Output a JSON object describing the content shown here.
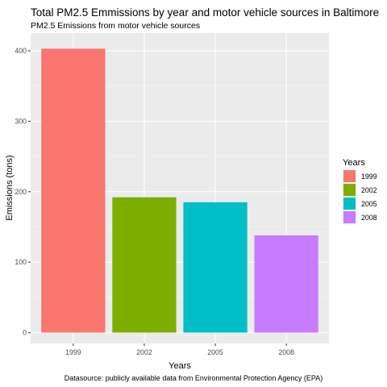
{
  "chart_data": {
    "type": "bar",
    "title": "Total PM2.5 Emmissions by year and motor vehicle sources in Baltimore",
    "subtitle": "PM2.5 Emissions from motor vehicle sources",
    "caption": "Datasource: publicly available data from Environmental Protection Agency (EPA)",
    "xlabel": "Years",
    "ylabel": "Emissions (tons)",
    "categories": [
      "1999",
      "2002",
      "2005",
      "2008"
    ],
    "values": [
      403,
      192,
      185,
      138
    ],
    "colors": [
      "#F8766D",
      "#7CAE00",
      "#00BFC4",
      "#C77CFF"
    ],
    "ylim": [
      0,
      420
    ],
    "yticks": [
      0,
      100,
      200,
      300,
      400
    ],
    "grid": true,
    "legend": {
      "title": "Years",
      "position": "right",
      "entries": [
        "1999",
        "2002",
        "2005",
        "2008"
      ]
    }
  }
}
